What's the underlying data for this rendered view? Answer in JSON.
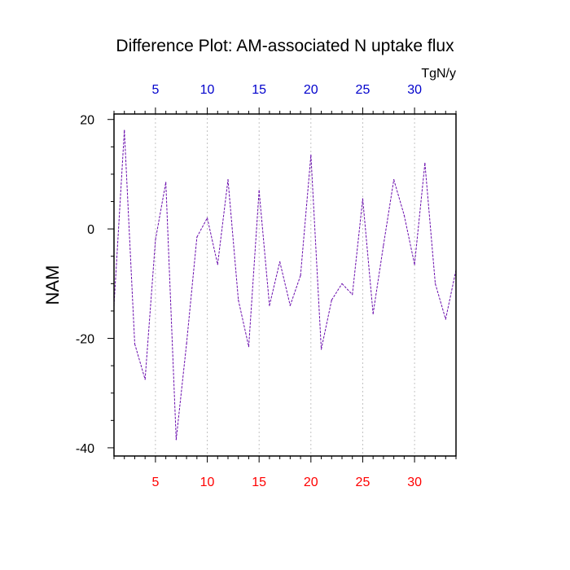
{
  "chart_data": {
    "type": "line",
    "title": "Difference Plot: AM-associated N uptake flux",
    "ylabel": "NAM",
    "top_axis_unit": "TgN/y",
    "xlim": [
      1,
      34
    ],
    "ylim": [
      -41.5,
      21
    ],
    "x_ticks": [
      5,
      10,
      15,
      20,
      25,
      30
    ],
    "x_tick_labels": [
      "5",
      "10",
      "15",
      "20",
      "25",
      "30"
    ],
    "y_ticks": [
      20,
      0,
      -20,
      -40
    ],
    "y_tick_labels": [
      "20",
      "0",
      "-20",
      "-40"
    ],
    "bottom_tick_color": "#ff0000",
    "top_tick_color": "#0000cc",
    "grid": "vertical dashed at major x ticks",
    "series": [
      {
        "color": "#6a0dad",
        "line_style": "dashed",
        "x": [
          1,
          2,
          3,
          4,
          5,
          6,
          7,
          8,
          9,
          10,
          11,
          12,
          13,
          14,
          15,
          16,
          17,
          18,
          19,
          20,
          21,
          22,
          23,
          24,
          25,
          26,
          27,
          28,
          29,
          30,
          31,
          32,
          33,
          34
        ],
        "values": [
          -14,
          18,
          -21,
          -27.5,
          -2,
          8.5,
          -38.5,
          -21,
          -1.5,
          2,
          -6.5,
          9,
          -13,
          -21.5,
          7,
          -14,
          -6,
          -14,
          -8.5,
          13.5,
          -22,
          -13,
          -10,
          -12,
          5.5,
          -15.5,
          -3,
          9,
          2.5,
          -6.5,
          12,
          -10,
          -16.5,
          -7.5
        ]
      }
    ]
  }
}
